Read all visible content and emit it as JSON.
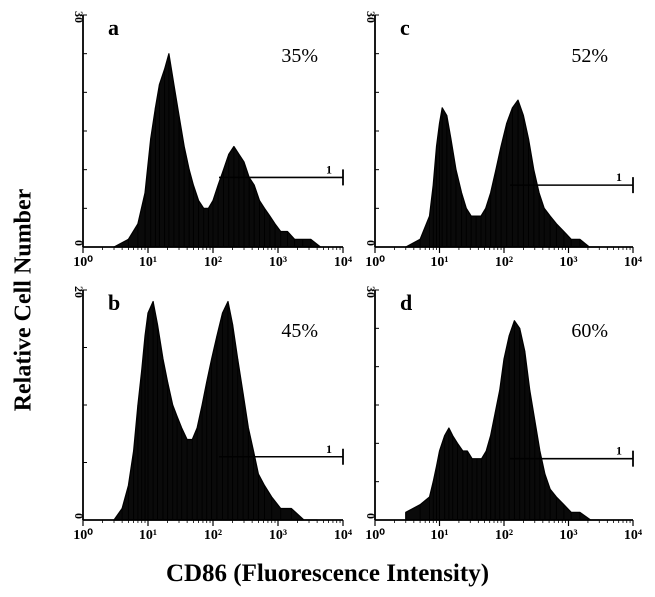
{
  "figure": {
    "ylabel": "Relative Cell Number",
    "xlabel": "CD86 (Fluorescence Intensity)"
  },
  "chart_data": [
    {
      "type": "area",
      "panel_label": "a",
      "percentage": "35%",
      "marker_label": "1",
      "y_max_label": "30",
      "y_min_label": "0",
      "x_scale": "log",
      "xlim": [
        1,
        10000
      ],
      "ylim": [
        0,
        30
      ],
      "tick_labels": [
        "10⁰",
        "10¹",
        "10²",
        "10³",
        "10⁴"
      ],
      "gate_range": [
        100,
        10000
      ],
      "gate_y": 9,
      "x": [
        3,
        5,
        7,
        9,
        11,
        13,
        15,
        18,
        21,
        25,
        30,
        36,
        43,
        50,
        60,
        72,
        85,
        100,
        120,
        145,
        175,
        210,
        250,
        300,
        360,
        430,
        520,
        620,
        750,
        900,
        1100,
        1400,
        1800,
        2400,
        3200,
        4500
      ],
      "values": [
        0,
        1,
        3,
        7,
        14,
        18,
        21,
        23,
        25,
        21,
        17,
        13,
        10,
        8,
        6,
        5,
        5,
        6,
        8,
        10,
        12,
        13,
        12,
        11,
        9,
        8,
        6,
        5,
        4,
        3,
        2,
        2,
        1,
        1,
        1,
        0
      ]
    },
    {
      "type": "area",
      "panel_label": "b",
      "percentage": "45%",
      "marker_label": "1",
      "y_max_label": "20",
      "y_min_label": "0",
      "x_scale": "log",
      "xlim": [
        1,
        10000
      ],
      "ylim": [
        0,
        20
      ],
      "tick_labels": [
        "10⁰",
        "10¹",
        "10²",
        "10³",
        "10⁴"
      ],
      "gate_range": [
        100,
        10000
      ],
      "gate_y": 5.5,
      "x": [
        3,
        4,
        5,
        6,
        7,
        8,
        9,
        10,
        12,
        14,
        17,
        20,
        24,
        28,
        33,
        40,
        48,
        57,
        68,
        80,
        95,
        115,
        140,
        170,
        200,
        240,
        290,
        350,
        420,
        500,
        620,
        800,
        1100,
        1600,
        2500,
        4000
      ],
      "values": [
        0,
        1,
        3,
        6,
        10,
        13,
        16,
        18,
        19,
        17,
        14,
        12,
        10,
        9,
        8,
        7,
        7,
        8,
        10,
        12,
        14,
        16,
        18,
        19,
        17,
        14,
        11,
        8,
        6,
        4,
        3,
        2,
        1,
        1,
        0,
        0
      ]
    },
    {
      "type": "area",
      "panel_label": "c",
      "percentage": "52%",
      "marker_label": "1",
      "y_max_label": "30",
      "y_min_label": "0",
      "x_scale": "log",
      "xlim": [
        1,
        10000
      ],
      "ylim": [
        0,
        30
      ],
      "tick_labels": [
        "10⁰",
        "10¹",
        "10²",
        "10³",
        "10⁴"
      ],
      "gate_range": [
        100,
        10000
      ],
      "gate_y": 8,
      "x": [
        3,
        5,
        7,
        8,
        9,
        10,
        11,
        13,
        15,
        18,
        22,
        26,
        31,
        37,
        44,
        52,
        62,
        75,
        90,
        110,
        135,
        165,
        200,
        240,
        290,
        350,
        420,
        520,
        650,
        850,
        1100,
        1500,
        2100,
        3000
      ],
      "values": [
        0,
        1,
        4,
        8,
        13,
        16,
        18,
        17,
        14,
        10,
        7,
        5,
        4,
        4,
        4,
        5,
        7,
        10,
        13,
        16,
        18,
        19,
        17,
        14,
        10,
        7,
        5,
        4,
        3,
        2,
        1,
        1,
        0,
        0
      ]
    },
    {
      "type": "area",
      "panel_label": "d",
      "percentage": "60%",
      "marker_label": "1",
      "y_max_label": "30",
      "y_min_label": "0",
      "x_scale": "log",
      "xlim": [
        1,
        10000
      ],
      "ylim": [
        0,
        30
      ],
      "tick_labels": [
        "10⁰",
        "10¹",
        "10²",
        "10³",
        "10⁴"
      ],
      "gate_range": [
        100,
        10000
      ],
      "gate_y": 8,
      "x": [
        3,
        5,
        7,
        8,
        9,
        10,
        12,
        14,
        16,
        19,
        23,
        27,
        32,
        38,
        45,
        53,
        62,
        73,
        86,
        100,
        120,
        145,
        175,
        210,
        250,
        300,
        360,
        430,
        520,
        650,
        850,
        1100,
        1500,
        2200,
        3000
      ],
      "values": [
        1,
        2,
        3,
        5,
        7,
        9,
        11,
        12,
        11,
        10,
        9,
        9,
        8,
        8,
        8,
        9,
        11,
        14,
        17,
        21,
        24,
        26,
        25,
        22,
        17,
        13,
        9,
        6,
        4,
        3,
        2,
        1,
        1,
        0,
        0
      ]
    }
  ]
}
